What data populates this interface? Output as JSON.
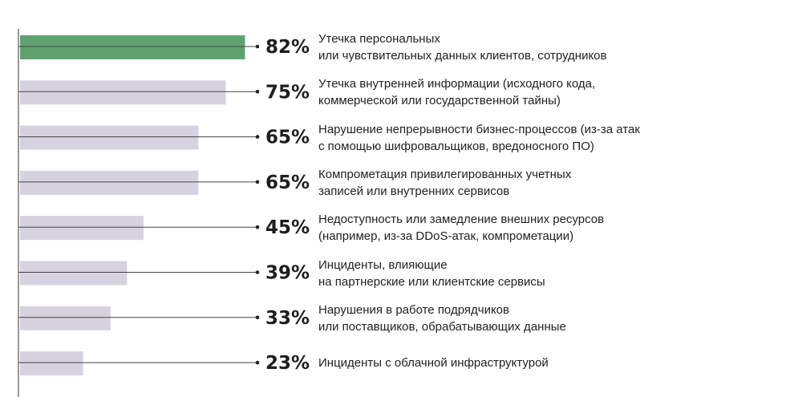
{
  "chart_data": {
    "type": "bar",
    "orientation": "horizontal",
    "xlim": [
      0,
      100
    ],
    "highlight_color": "#5fa26f",
    "bar_color": "#d6d2df",
    "categories": [
      [
        "Утечка персональных",
        "или чувствительных данных клиентов, сотрудников"
      ],
      [
        "Утечка внутренней информации (исходного кода,",
        "коммерческой или государственной тайны)"
      ],
      [
        "Нарушение непрерывности бизнес-процессов (из-за атак",
        "с помощью шифровальщиков, вредоносного ПО)"
      ],
      [
        "Компрометация привилегированных учетных",
        "записей или внутренних сервисов"
      ],
      [
        "Недоступность или замедление внешних ресурсов",
        "(например, из-за DDoS-атак, компрометации)"
      ],
      [
        "Инциденты, влияющие",
        "на партнерские или клиентские сервисы"
      ],
      [
        "Нарушения в работе подрядчиков",
        "или поставщиков, обрабатывающих данные"
      ],
      [
        "Инциденты с облачной инфраструктурой"
      ]
    ],
    "values": [
      82,
      75,
      65,
      65,
      45,
      39,
      33,
      23
    ],
    "value_labels": [
      "82%",
      "75%",
      "65%",
      "65%",
      "45%",
      "39%",
      "33%",
      "23%"
    ]
  }
}
